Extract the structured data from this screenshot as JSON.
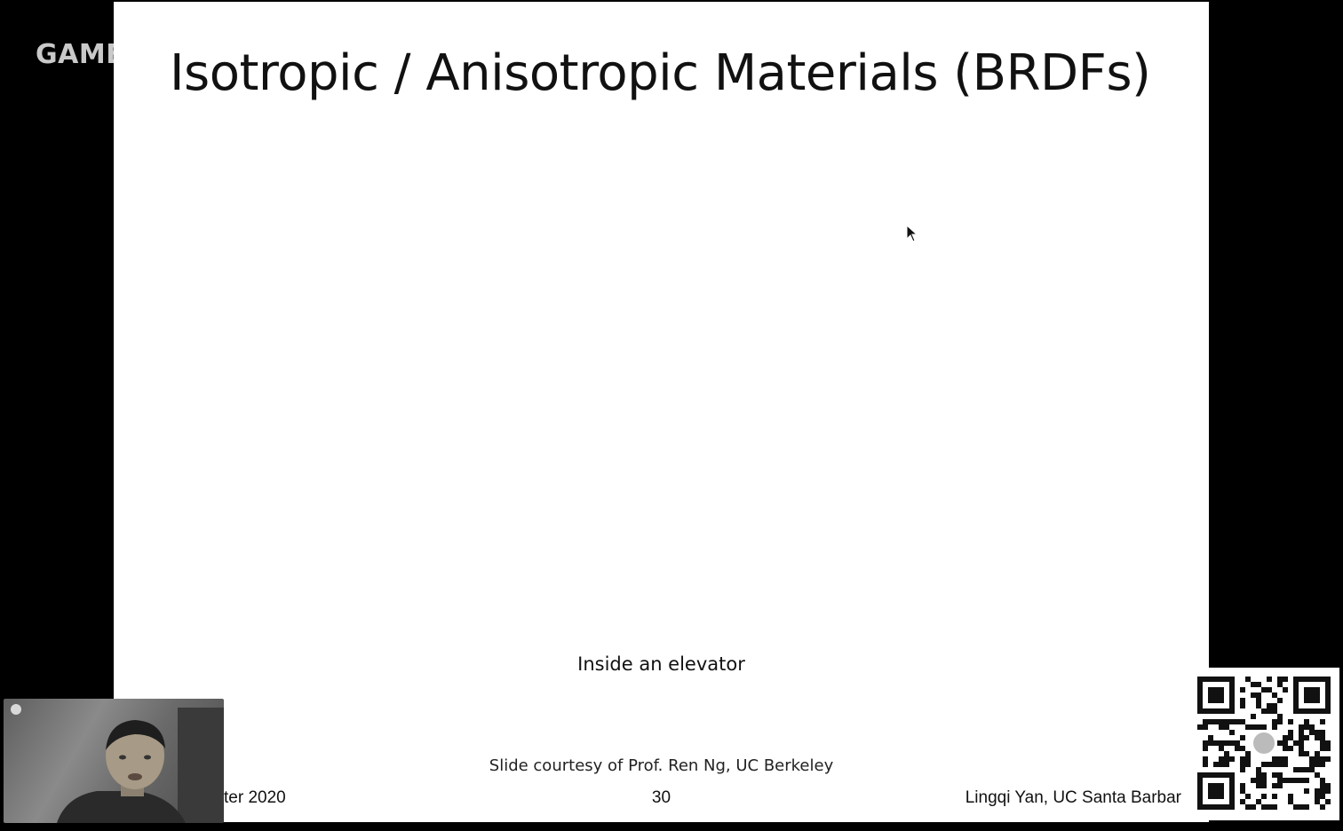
{
  "watermark": {
    "text": "GAME"
  },
  "slide": {
    "title": "Isotropic / Anisotropic Materials (BRDFs)",
    "caption": "Inside an elevator",
    "credit": "Slide courtesy of Prof. Ren Ng, UC Berkeley",
    "footer_left": "ter 2020",
    "page_number": "30",
    "footer_right": "Lingqi Yan, UC Santa Barbar"
  },
  "icons": {
    "cursor": "mouse-pointer-icon",
    "qr": "qr-code-icon",
    "webcam": "webcam-feed"
  }
}
